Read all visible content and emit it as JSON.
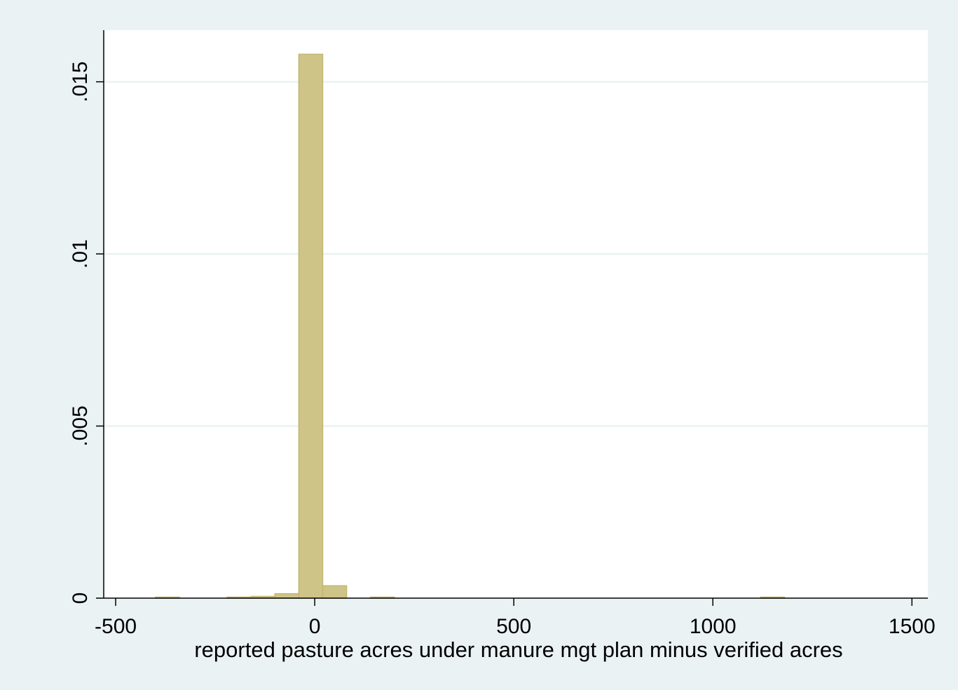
{
  "chart_data": {
    "type": "bar",
    "title": "",
    "xlabel": "reported pasture acres under manure mgt plan minus verified acres",
    "ylabel": "",
    "xlim": [
      -530,
      1540
    ],
    "ylim": [
      0,
      0.0165
    ],
    "x_ticks": [
      -500,
      0,
      500,
      1000,
      1500
    ],
    "x_tick_labels": [
      "-500",
      "0",
      "500",
      "1000",
      "1500"
    ],
    "y_ticks": [
      0,
      0.005,
      0.01,
      0.015
    ],
    "y_tick_labels": [
      "0",
      ".005",
      ".01",
      ".015"
    ],
    "grid": true,
    "legend": "none",
    "bin_width": 60,
    "bins": [
      {
        "x0": -400,
        "x1": -340,
        "density": 2e-05
      },
      {
        "x0": -220,
        "x1": -160,
        "density": 2e-05
      },
      {
        "x0": -160,
        "x1": -100,
        "density": 5e-05
      },
      {
        "x0": -100,
        "x1": -40,
        "density": 0.00013
      },
      {
        "x0": -40,
        "x1": 20,
        "density": 0.0158
      },
      {
        "x0": 20,
        "x1": 80,
        "density": 0.00036
      },
      {
        "x0": 140,
        "x1": 200,
        "density": 2e-05
      },
      {
        "x0": 1120,
        "x1": 1180,
        "density": 2e-05
      }
    ],
    "colors": {
      "bar_fill": "#cfc487",
      "bar_stroke": "#c2b676",
      "plot_background": "#ffffff",
      "outer_background": "#eaf2f3",
      "gridline": "#eaf2f3",
      "axis": "#000000"
    }
  }
}
